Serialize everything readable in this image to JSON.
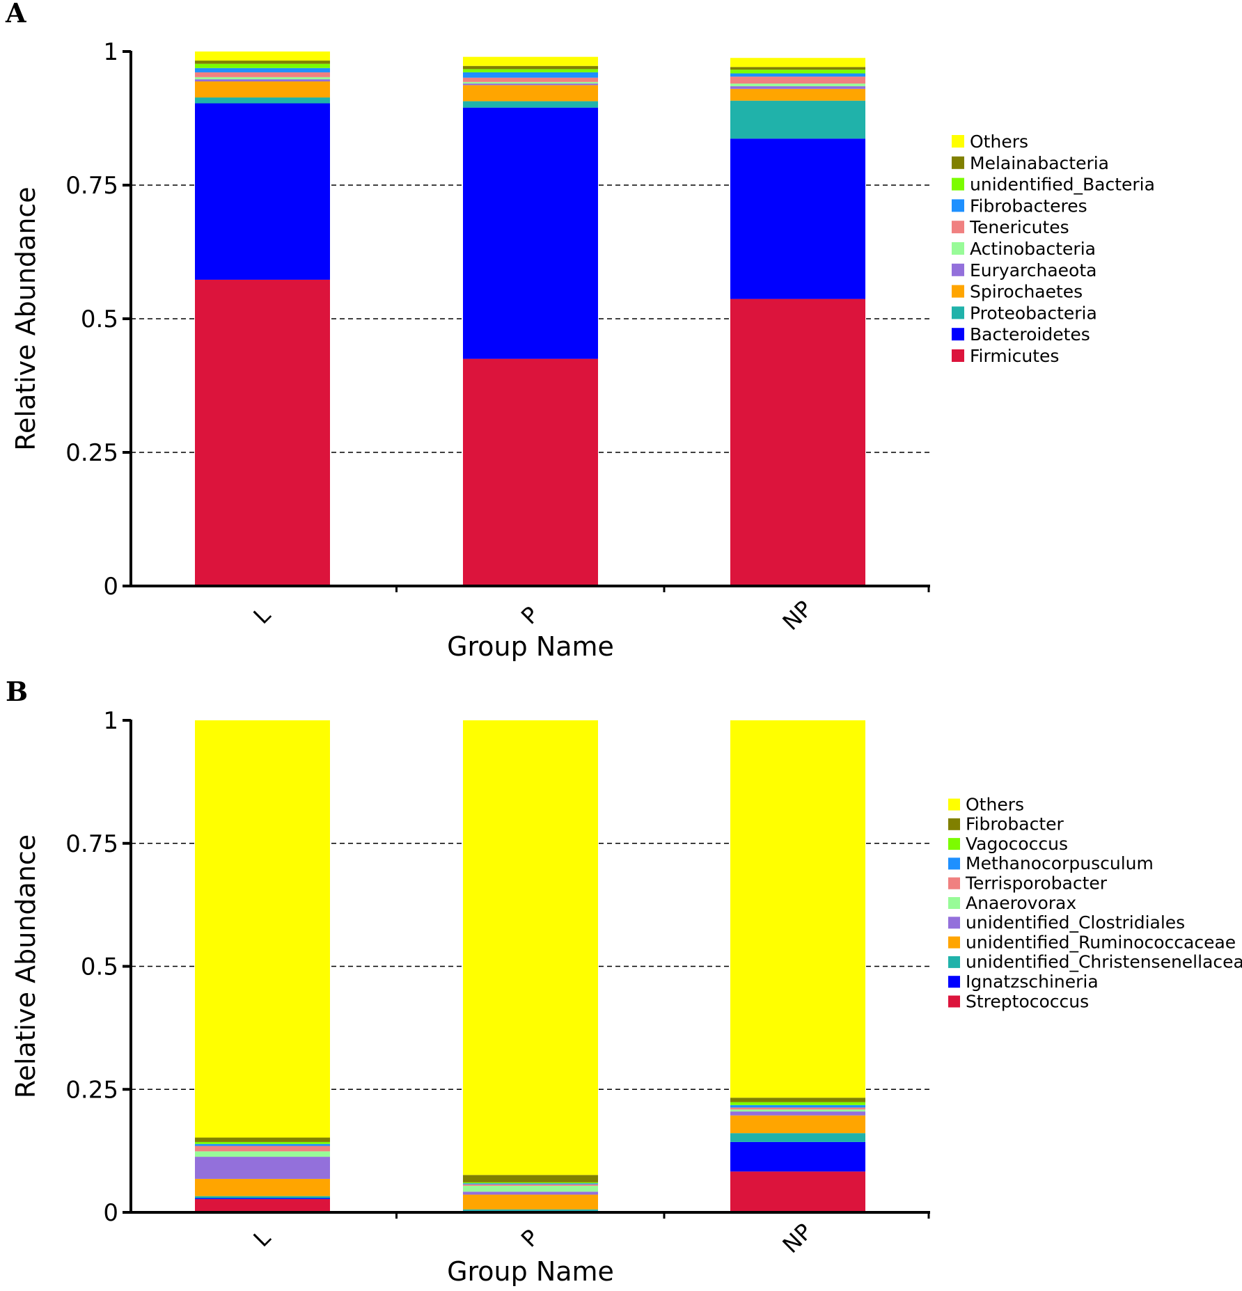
{
  "chart_data": [
    {
      "type": "bar",
      "stacked": true,
      "panel": "A",
      "xlabel": "Group Name",
      "ylabel": "Relative Abundance",
      "ylim": [
        0,
        1
      ],
      "yticks": [
        0,
        0.25,
        0.5,
        0.75,
        1
      ],
      "ytick_labels": [
        "0",
        "0.25",
        "0.5",
        "0.75",
        "1"
      ],
      "grid": "dashed horizontal",
      "legend_position": "right",
      "categories": [
        "L",
        "P",
        "NP"
      ],
      "series": [
        {
          "name": "Firmicutes",
          "color": "#dc143c",
          "values": [
            0.573,
            0.425,
            0.537
          ]
        },
        {
          "name": "Bacteroidetes",
          "color": "#0000ff",
          "values": [
            0.33,
            0.47,
            0.3
          ]
        },
        {
          "name": "Proteobacteria",
          "color": "#20b2aa",
          "values": [
            0.011,
            0.012,
            0.071
          ]
        },
        {
          "name": "Spirochaetes",
          "color": "#ffa500",
          "values": [
            0.03,
            0.03,
            0.022
          ]
        },
        {
          "name": "Euryarchaeota",
          "color": "#9370db",
          "values": [
            0.004,
            0.003,
            0.005
          ]
        },
        {
          "name": "Actinobacteria",
          "color": "#98fb98",
          "values": [
            0.004,
            0.003,
            0.005
          ]
        },
        {
          "name": "Tenericutes",
          "color": "#f08080",
          "values": [
            0.009,
            0.008,
            0.013
          ]
        },
        {
          "name": "Fibrobacteres",
          "color": "#1e90ff",
          "values": [
            0.008,
            0.01,
            0.006
          ]
        },
        {
          "name": "unidentified_Bacteria",
          "color": "#7cfc00",
          "values": [
            0.008,
            0.006,
            0.007
          ]
        },
        {
          "name": "Melainabacteria",
          "color": "#808000",
          "values": [
            0.006,
            0.006,
            0.005
          ]
        },
        {
          "name": "Others",
          "color": "#ffff00",
          "values": [
            0.017,
            0.017,
            0.017
          ]
        }
      ]
    },
    {
      "type": "bar",
      "stacked": true,
      "panel": "B",
      "xlabel": "Group Name",
      "ylabel": "Relative Abundance",
      "ylim": [
        0,
        1
      ],
      "yticks": [
        0,
        0.25,
        0.5,
        0.75,
        1
      ],
      "ytick_labels": [
        "0",
        "0.25",
        "0.5",
        "0.75",
        "1"
      ],
      "grid": "dashed horizontal",
      "legend_position": "right",
      "categories": [
        "L",
        "P",
        "NP"
      ],
      "series": [
        {
          "name": "Streptococcus",
          "color": "#dc143c",
          "values": [
            0.027,
            0.002,
            0.083
          ]
        },
        {
          "name": "Ignatzschineria",
          "color": "#0000ff",
          "values": [
            0.002,
            0.001,
            0.06
          ]
        },
        {
          "name": "unidentified_Christensenellaceae",
          "color": "#20b2aa",
          "values": [
            0.004,
            0.003,
            0.018
          ]
        },
        {
          "name": "unidentified_Ruminococcaceae",
          "color": "#ffa500",
          "values": [
            0.035,
            0.03,
            0.036
          ]
        },
        {
          "name": "unidentified_Clostridiales",
          "color": "#9370db",
          "values": [
            0.045,
            0.006,
            0.008
          ]
        },
        {
          "name": "Anaerovorax",
          "color": "#98fb98",
          "values": [
            0.011,
            0.012,
            0.004
          ]
        },
        {
          "name": "Terrisporobacter",
          "color": "#f08080",
          "values": [
            0.011,
            0.003,
            0.004
          ]
        },
        {
          "name": "Methanocorpusculum",
          "color": "#1e90ff",
          "values": [
            0.004,
            0.002,
            0.005
          ]
        },
        {
          "name": "Vagococcus",
          "color": "#7cfc00",
          "values": [
            0.004,
            0.002,
            0.006
          ]
        },
        {
          "name": "Fibrobacter",
          "color": "#808000",
          "values": [
            0.009,
            0.015,
            0.009
          ]
        },
        {
          "name": "Others",
          "color": "#ffff00",
          "values": [
            0.848,
            0.924,
            0.767
          ]
        }
      ]
    }
  ]
}
